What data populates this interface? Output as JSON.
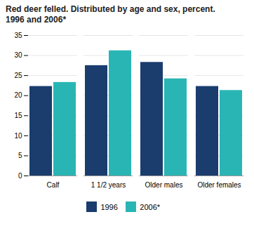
{
  "chart_data": {
    "type": "bar",
    "title": "Red deer felled. Distributed by age and sex, percent.",
    "subtitle": "1996 and 2006*",
    "categories": [
      "Calf",
      "1 1/2 years",
      "Older males",
      "Older females"
    ],
    "series": [
      {
        "name": "1996",
        "color": "#1a3d6e",
        "values": [
          22.3,
          27.5,
          28.3,
          22.3
        ]
      },
      {
        "name": "2006*",
        "color": "#2ab5b5",
        "values": [
          23.3,
          31.2,
          24.2,
          21.3
        ]
      }
    ],
    "ylim": [
      0,
      35
    ],
    "yticks": [
      0,
      5,
      10,
      15,
      20,
      25,
      30,
      35
    ],
    "grid": true,
    "legend": "bottom"
  }
}
